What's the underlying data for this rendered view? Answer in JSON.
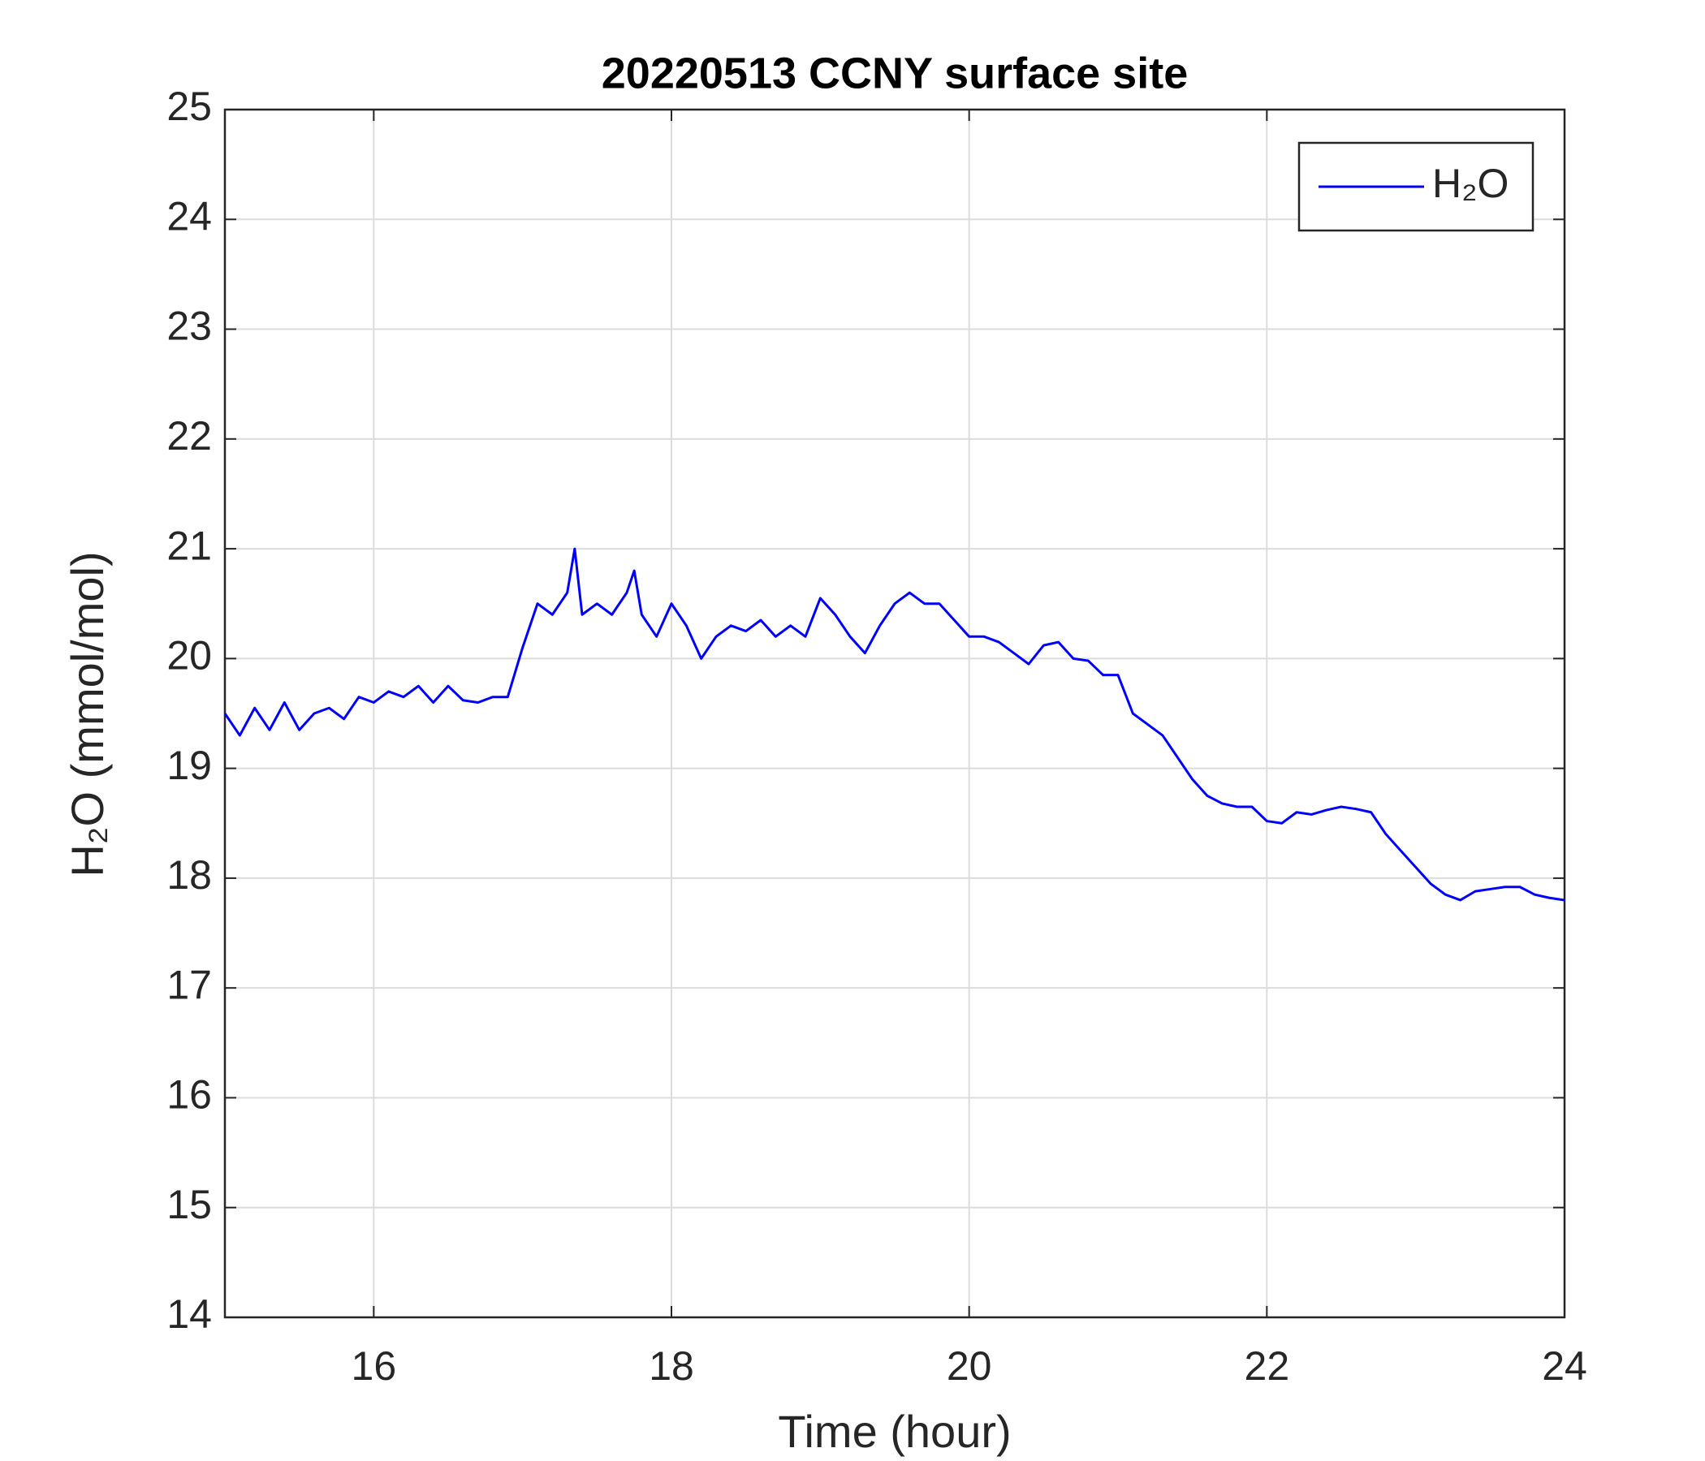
{
  "chart_data": {
    "type": "line",
    "title": "20220513 CCNY surface site",
    "xlabel": "Time (hour)",
    "ylabel": "H₂O (mmol/mol)",
    "x": [
      15.0,
      15.1,
      15.2,
      15.3,
      15.4,
      15.5,
      15.6,
      15.7,
      15.8,
      15.9,
      16.0,
      16.1,
      16.2,
      16.3,
      16.4,
      16.5,
      16.6,
      16.7,
      16.8,
      16.9,
      17.0,
      17.1,
      17.2,
      17.3,
      17.35,
      17.4,
      17.5,
      17.6,
      17.7,
      17.75,
      17.8,
      17.9,
      18.0,
      18.1,
      18.2,
      18.3,
      18.4,
      18.5,
      18.6,
      18.7,
      18.8,
      18.9,
      19.0,
      19.1,
      19.2,
      19.3,
      19.4,
      19.5,
      19.6,
      19.7,
      19.8,
      19.9,
      20.0,
      20.1,
      20.2,
      20.3,
      20.4,
      20.5,
      20.6,
      20.7,
      20.8,
      20.9,
      21.0,
      21.1,
      21.2,
      21.3,
      21.4,
      21.5,
      21.6,
      21.7,
      21.8,
      21.9,
      22.0,
      22.1,
      22.2,
      22.3,
      22.4,
      22.5,
      22.6,
      22.7,
      22.8,
      22.9,
      23.0,
      23.1,
      23.2,
      23.3,
      23.4,
      23.5,
      23.6,
      23.7,
      23.8,
      23.9,
      24.0
    ],
    "series": [
      {
        "name": "H₂O",
        "color": "#0000ff",
        "values": [
          19.5,
          19.3,
          19.55,
          19.35,
          19.6,
          19.35,
          19.5,
          19.55,
          19.45,
          19.65,
          19.6,
          19.7,
          19.65,
          19.75,
          19.6,
          19.75,
          19.62,
          19.6,
          19.65,
          19.65,
          20.1,
          20.5,
          20.4,
          20.6,
          21.0,
          20.4,
          20.5,
          20.4,
          20.6,
          20.8,
          20.4,
          20.2,
          20.5,
          20.3,
          20.0,
          20.2,
          20.3,
          20.25,
          20.35,
          20.2,
          20.3,
          20.2,
          20.55,
          20.4,
          20.2,
          20.05,
          20.3,
          20.5,
          20.6,
          20.5,
          20.5,
          20.35,
          20.2,
          20.2,
          20.15,
          20.05,
          19.95,
          20.12,
          20.15,
          20.0,
          19.98,
          19.85,
          19.85,
          19.5,
          19.4,
          19.3,
          19.1,
          18.9,
          18.75,
          18.68,
          18.65,
          18.65,
          18.52,
          18.5,
          18.6,
          18.58,
          18.62,
          18.65,
          18.63,
          18.6,
          18.4,
          18.25,
          18.1,
          17.95,
          17.85,
          17.8,
          17.88,
          17.9,
          17.92,
          17.92,
          17.85,
          17.82,
          17.8
        ]
      }
    ],
    "xlim": [
      15,
      24
    ],
    "xticks": [
      16,
      18,
      20,
      22,
      24
    ],
    "ylim": [
      14,
      25
    ],
    "yticks": [
      14,
      15,
      16,
      17,
      18,
      19,
      20,
      21,
      22,
      23,
      24,
      25
    ],
    "grid": true,
    "legend": "upper right"
  }
}
